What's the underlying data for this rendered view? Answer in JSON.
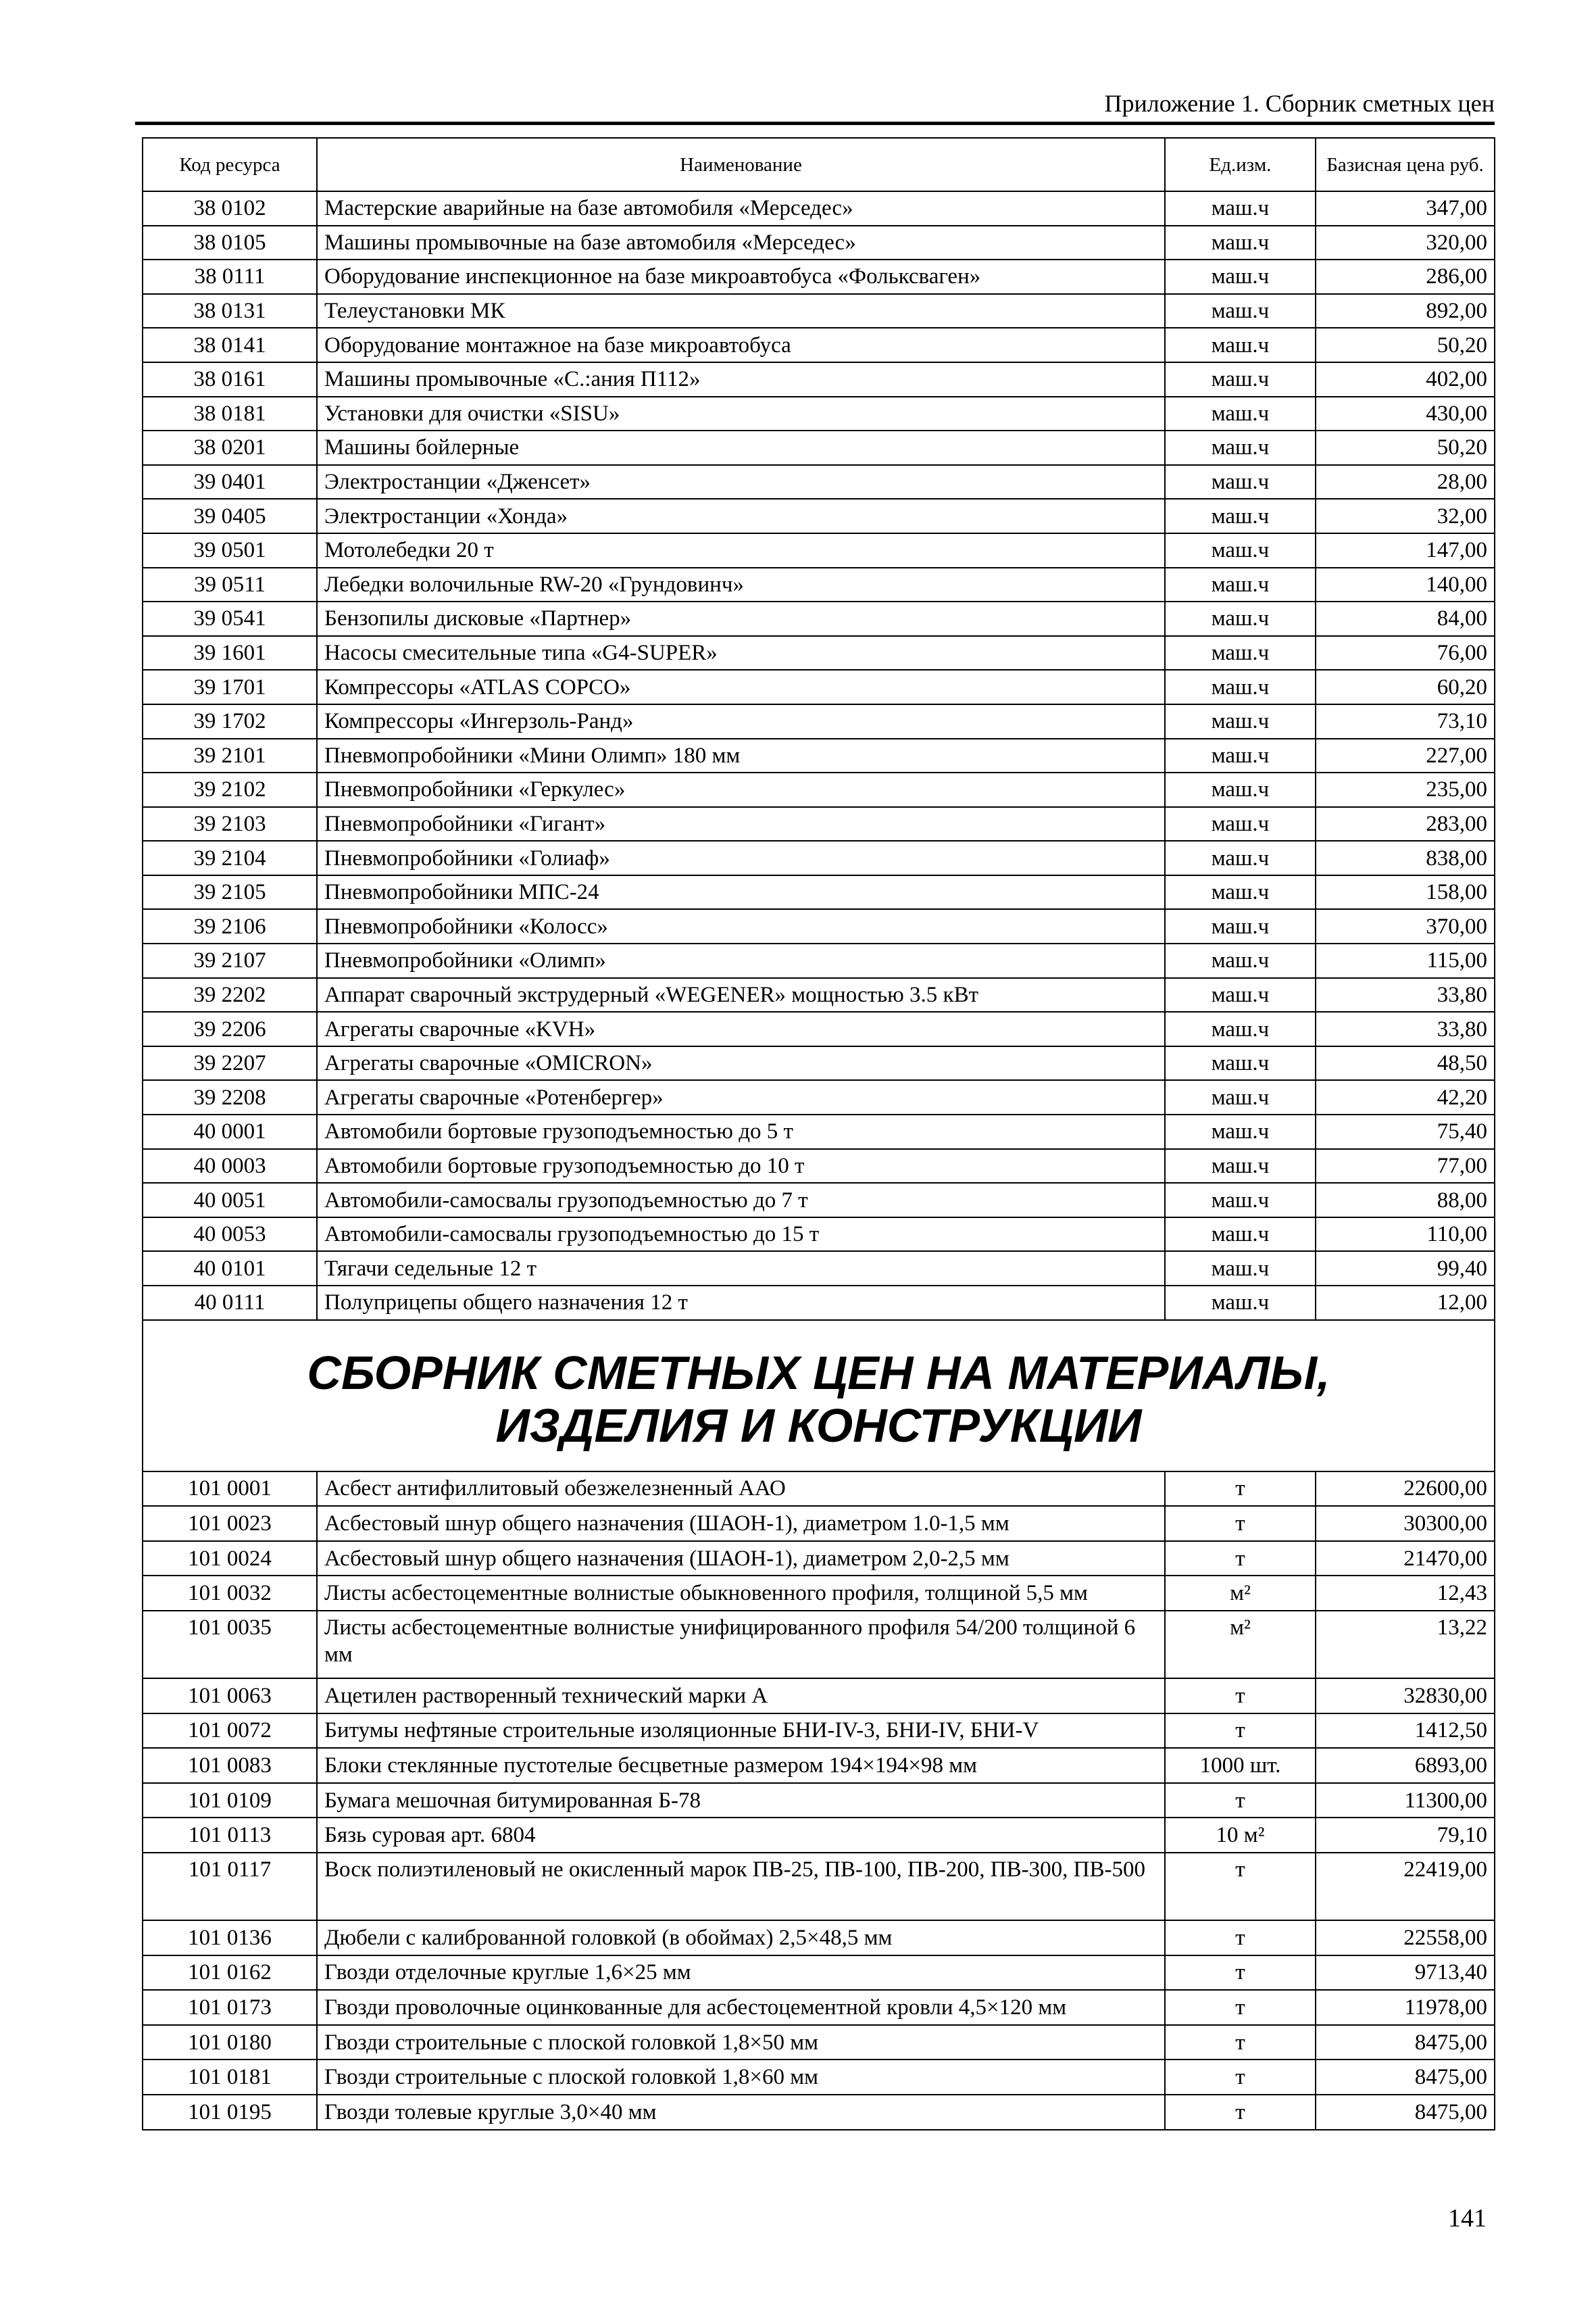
{
  "running_head": "Приложение 1. Сборник сметных цен",
  "page_number": "141",
  "table": {
    "headers": [
      "Код ресурса",
      "Наименование",
      "Ед.изм.",
      "Базисная цена руб."
    ],
    "machines": [
      [
        "38 0102",
        "Мастерские аварийные на базе автомобиля «Мерседес»",
        "маш.ч",
        "347,00"
      ],
      [
        "38 0105",
        "Машины промывочные на базе автомобиля «Мерседес»",
        "маш.ч",
        "320,00"
      ],
      [
        "38 0111",
        "Оборудование инспекционное на базе микроавтобуса «Фольксваген»",
        "маш.ч",
        "286,00"
      ],
      [
        "38 0131",
        "Телеустановки МК",
        "маш.ч",
        "892,00"
      ],
      [
        "38 0141",
        "Оборудование монтажное на базе микроавтобуса",
        "маш.ч",
        "50,20"
      ],
      [
        "38 0161",
        "Машины промывочные «С.:ания П112»",
        "маш.ч",
        "402,00"
      ],
      [
        "38 0181",
        "Установки для очистки «SISU»",
        "маш.ч",
        "430,00"
      ],
      [
        "38 0201",
        "Машины бойлерные",
        "маш.ч",
        "50,20"
      ],
      [
        "39 0401",
        "Электростанции «Дженсет»",
        "маш.ч",
        "28,00"
      ],
      [
        "39 0405",
        "Электростанции «Хонда»",
        "маш.ч",
        "32,00"
      ],
      [
        "39 0501",
        "Мотолебедки 20 т",
        "маш.ч",
        "147,00"
      ],
      [
        "39 0511",
        "Лебедки волочильные RW-20 «Грундовинч»",
        "маш.ч",
        "140,00"
      ],
      [
        "39 0541",
        "Бензопилы дисковые «Партнер»",
        "маш.ч",
        "84,00"
      ],
      [
        "39 1601",
        "Насосы смесительные типа «G4-SUPER»",
        "маш.ч",
        "76,00"
      ],
      [
        "39 1701",
        "Компрессоры «ATLAS COPCO»",
        "маш.ч",
        "60,20"
      ],
      [
        "39 1702",
        "Компрессоры «Ингерзоль-Ранд»",
        "маш.ч",
        "73,10"
      ],
      [
        "39 2101",
        "Пневмопробойники «Мини Олимп» 180 мм",
        "маш.ч",
        "227,00"
      ],
      [
        "39 2102",
        "Пневмопробойники «Геркулес»",
        "маш.ч",
        "235,00"
      ],
      [
        "39 2103",
        "Пневмопробойники «Гигант»",
        "маш.ч",
        "283,00"
      ],
      [
        "39 2104",
        "Пневмопробойники «Голиаф»",
        "маш.ч",
        "838,00"
      ],
      [
        "39 2105",
        "Пневмопробойники МПС-24",
        "маш.ч",
        "158,00"
      ],
      [
        "39 2106",
        "Пневмопробойники «Колосс»",
        "маш.ч",
        "370,00"
      ],
      [
        "39 2107",
        "Пневмопробойники «Олимп»",
        "маш.ч",
        "115,00"
      ],
      [
        "39 2202",
        "Аппарат сварочный экструдерный «WEGENER» мощностью 3.5 кВт",
        "маш.ч",
        "33,80"
      ],
      [
        "39 2206",
        "Агрегаты сварочные «KVH»",
        "маш.ч",
        "33,80"
      ],
      [
        "39 2207",
        "Агрегаты сварочные «OMICRON»",
        "маш.ч",
        "48,50"
      ],
      [
        "39 2208",
        "Агрегаты сварочные «Ротенбергер»",
        "маш.ч",
        "42,20"
      ],
      [
        "40 0001",
        "Автомобили бортовые грузоподъемностью до 5 т",
        "маш.ч",
        "75,40"
      ],
      [
        "40 0003",
        "Автомобили бортовые грузоподъемностью до 10 т",
        "маш.ч",
        "77,00"
      ],
      [
        "40 0051",
        "Автомобили-самосвалы грузоподъемностью до 7 т",
        "маш.ч",
        "88,00"
      ],
      [
        "40 0053",
        "Автомобили-самосвалы грузоподъемностью до 15 т",
        "маш.ч",
        "110,00"
      ],
      [
        "40 0101",
        "Тягачи седельные 12 т",
        "маш.ч",
        "99,40"
      ],
      [
        "40 0111",
        "Полуприцепы общего назначения 12 т",
        "маш.ч",
        "12,00"
      ]
    ],
    "section_title_line1": "СБОРНИК СМЕТНЫХ ЦЕН НА МАТЕРИАЛЫ,",
    "section_title_line2": "ИЗДЕЛИЯ И КОНСТРУКЦИИ",
    "materials": [
      [
        "101 0001",
        "Асбест антифиллитовый обезжелезненный ААО",
        "т",
        "22600,00"
      ],
      [
        "101 0023",
        "Асбестовый шнур общего назначения (ШАОН-1), диаметром 1.0-1,5 мм",
        "т",
        "30300,00"
      ],
      [
        "101 0024",
        "Асбестовый шнур общего назначения (ШАОН-1), диаметром 2,0-2,5 мм",
        "т",
        "21470,00"
      ],
      [
        "101 0032",
        "Листы асбестоцементные волнистые обыкновенного профиля, толщиной 5,5 мм",
        "м²",
        "12,43"
      ],
      [
        "101 0035",
        "Листы асбестоцементные волнистые унифицированного профиля 54/200 толщиной 6 мм",
        "м²",
        "13,22"
      ],
      [
        "101 0063",
        "Ацетилен растворенный технический марки А",
        "т",
        "32830,00"
      ],
      [
        "101 0072",
        "Битумы нефтяные строительные изоляционные БНИ-IV-3, БНИ-IV, БНИ-V",
        "т",
        "1412,50"
      ],
      [
        "101 0083",
        "Блоки стеклянные пустотелые бесцветные размером 194×194×98 мм",
        "1000 шт.",
        "6893,00"
      ],
      [
        "101 0109",
        "Бумага мешочная битумированная Б-78",
        "т",
        "11300,00"
      ],
      [
        "101 0113",
        "Бязь суровая арт. 6804",
        "10 м²",
        "79,10"
      ],
      [
        "101 0117",
        "Воск полиэтиленовый не окисленный марок ПВ-25, ПВ-100, ПВ-200, ПВ-300, ПВ-500",
        "т",
        "22419,00"
      ],
      [
        "101 0136",
        "Дюбели с калиброванной головкой (в обоймах) 2,5×48,5 мм",
        "т",
        "22558,00"
      ],
      [
        "101 0162",
        "Гвозди отделочные круглые 1,6×25 мм",
        "т",
        "9713,40"
      ],
      [
        "101 0173",
        "Гвозди проволочные оцинкованные для асбестоцементной кровли 4,5×120 мм",
        "т",
        "11978,00"
      ],
      [
        "101 0180",
        "Гвозди строительные с плоской головкой 1,8×50 мм",
        "т",
        "8475,00"
      ],
      [
        "101 0181",
        "Гвозди строительные с плоской головкой 1,8×60 мм",
        "т",
        "8475,00"
      ],
      [
        "101 0195",
        "Гвозди толевые круглые 3,0×40 мм",
        "т",
        "8475,00"
      ]
    ]
  }
}
